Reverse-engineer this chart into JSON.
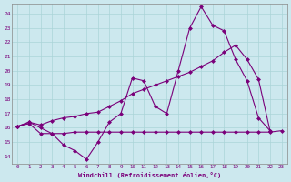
{
  "xlabel": "Windchill (Refroidissement éolien,°C)",
  "xlim": [
    -0.5,
    23.5
  ],
  "ylim": [
    13.5,
    24.7
  ],
  "xticks": [
    0,
    1,
    2,
    3,
    4,
    5,
    6,
    7,
    8,
    9,
    10,
    11,
    12,
    13,
    14,
    15,
    16,
    17,
    18,
    19,
    20,
    21,
    22,
    23
  ],
  "yticks": [
    14,
    15,
    16,
    17,
    18,
    19,
    20,
    21,
    22,
    23,
    24
  ],
  "bg_color": "#cce8ee",
  "grid_color": "#aad4d8",
  "line_color": "#7a007a",
  "line1_x": [
    0,
    1,
    2,
    3,
    4,
    5,
    6,
    7,
    8,
    9,
    10,
    11,
    12,
    13,
    14,
    15,
    16,
    17,
    18,
    19,
    20,
    21,
    22
  ],
  "line1_y": [
    16.1,
    16.4,
    16.0,
    15.6,
    14.8,
    14.4,
    13.8,
    15.0,
    16.4,
    17.0,
    19.5,
    19.3,
    17.5,
    17.0,
    20.0,
    23.0,
    24.5,
    23.2,
    22.8,
    20.8,
    19.3,
    16.7,
    15.8
  ],
  "line2_x": [
    0,
    1,
    2,
    3,
    4,
    5,
    6,
    7,
    8,
    9,
    10,
    11,
    12,
    13,
    14,
    15,
    16,
    17,
    18,
    19,
    20,
    21,
    22
  ],
  "line2_y": [
    16.1,
    16.4,
    16.2,
    16.5,
    16.7,
    16.8,
    17.0,
    17.1,
    17.5,
    17.9,
    18.4,
    18.7,
    19.0,
    19.3,
    19.6,
    19.9,
    20.3,
    20.7,
    21.3,
    21.8,
    20.8,
    19.4,
    15.8
  ],
  "line3_x": [
    0,
    1,
    2,
    3,
    4,
    5,
    6,
    7,
    8,
    9,
    10,
    11,
    12,
    13,
    14,
    15,
    16,
    17,
    18,
    19,
    20,
    21,
    22,
    23
  ],
  "line3_y": [
    16.1,
    16.3,
    15.6,
    15.6,
    15.6,
    15.7,
    15.7,
    15.7,
    15.7,
    15.7,
    15.7,
    15.7,
    15.7,
    15.7,
    15.7,
    15.7,
    15.7,
    15.7,
    15.7,
    15.7,
    15.7,
    15.7,
    15.7,
    15.8
  ],
  "markersize": 2.5
}
